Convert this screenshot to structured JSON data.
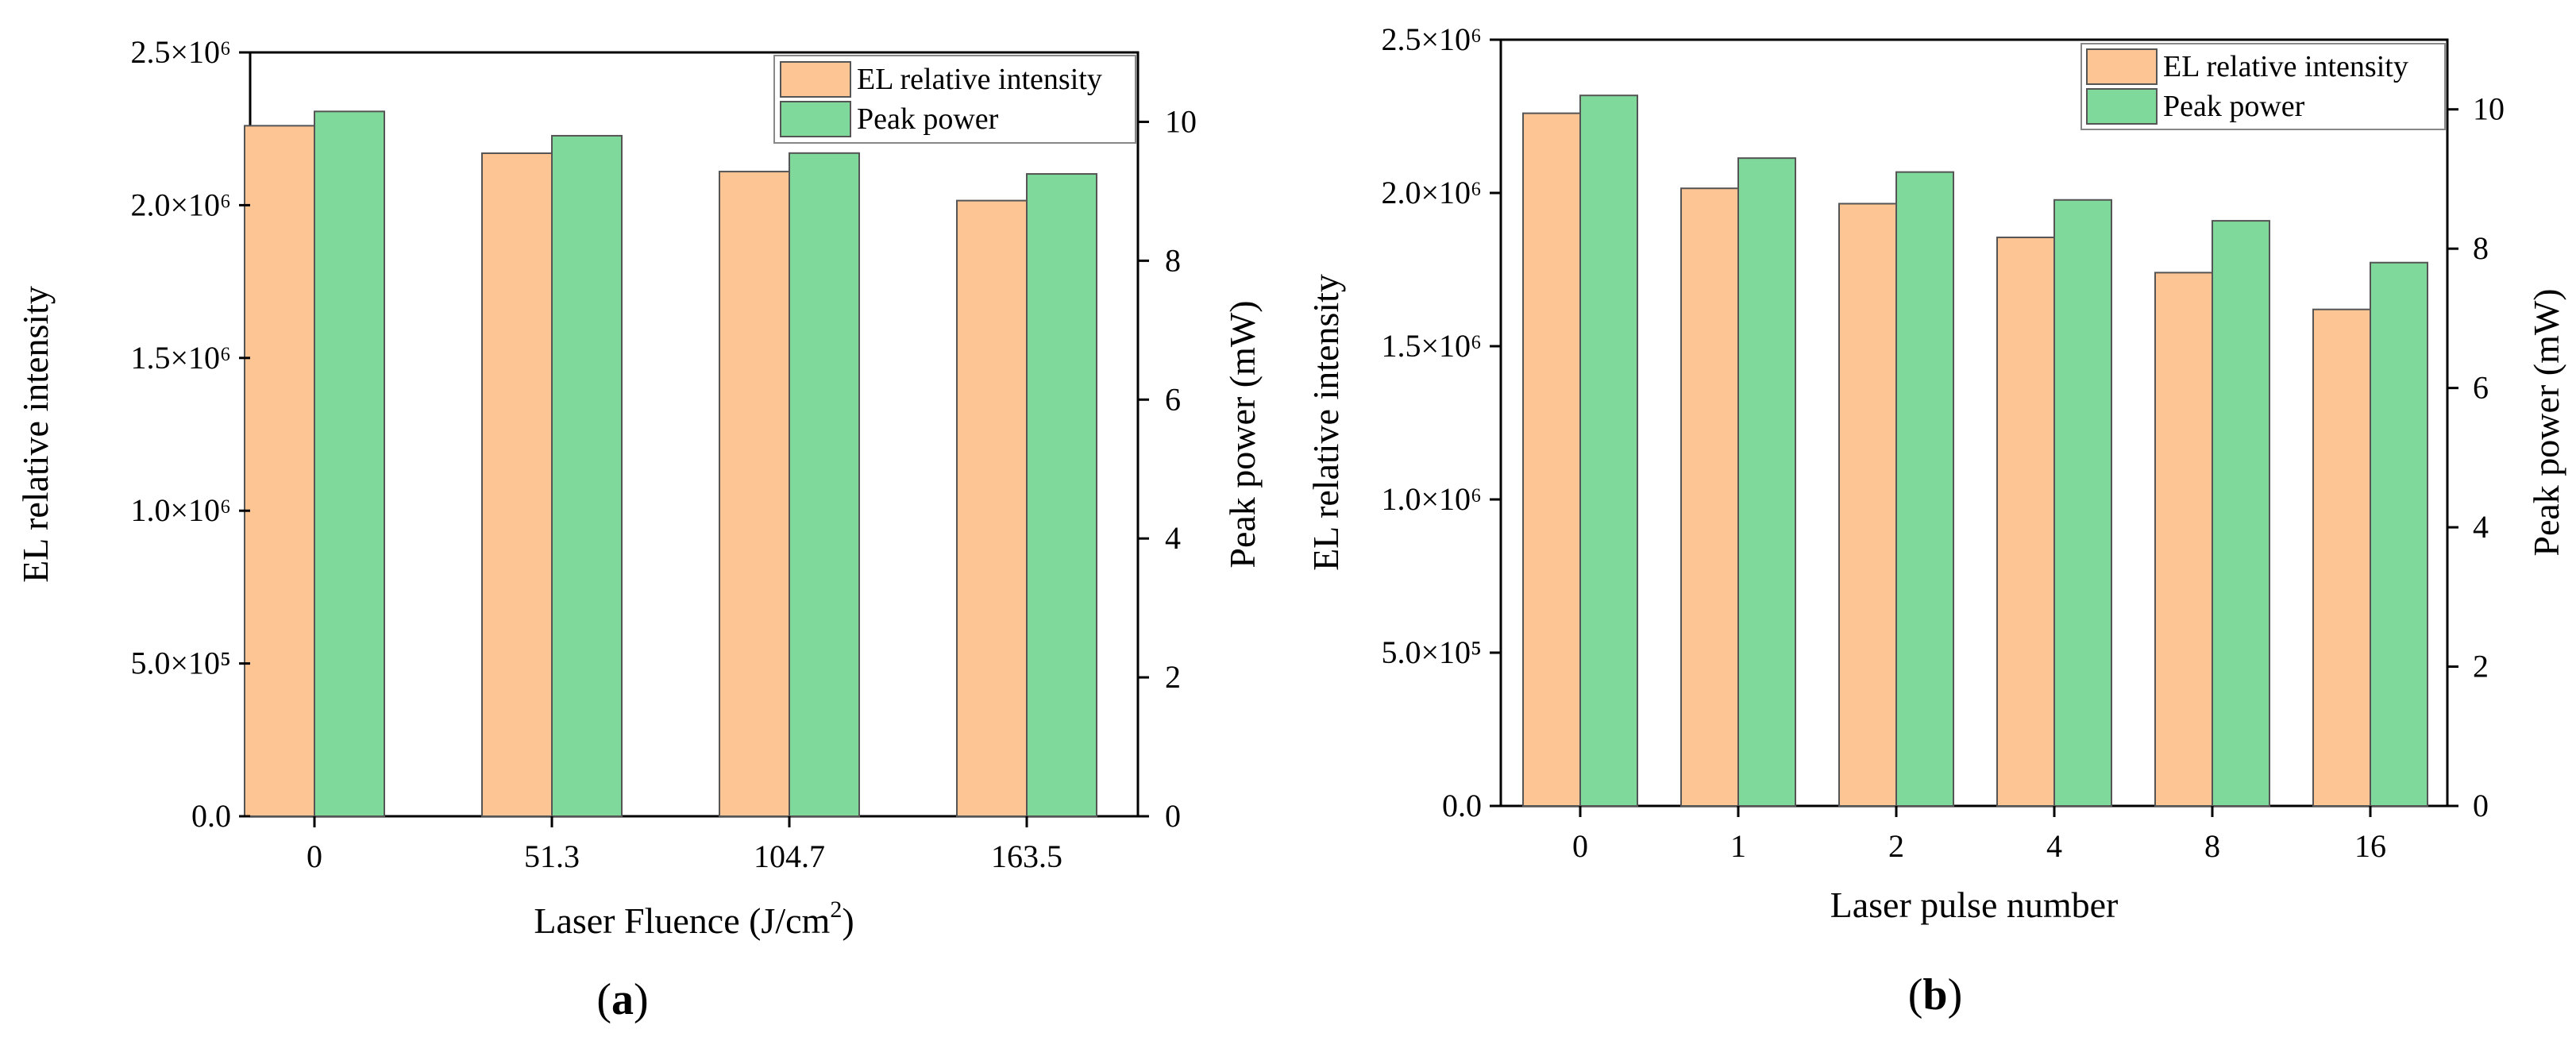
{
  "chart_data": [
    {
      "type": "bar",
      "panel_label_prefix": "(",
      "panel_label_letter": "a",
      "panel_label_suffix": ")",
      "categories": [
        "0",
        "51.3",
        "104.7",
        "163.5"
      ],
      "xlabel_main": "Laser Fluence (J/cm",
      "xlabel_sup": "2",
      "xlabel_end": ")",
      "ylabel": "EL relative intensity",
      "y2label": "Peak power (mW)",
      "ylim": [
        0,
        2500000
      ],
      "y2lim": [
        0,
        11.0
      ],
      "yticks": [
        "0.0",
        "5.0×10⁵",
        "1.0×10⁶",
        "1.5×10⁶",
        "2.0×10⁶",
        "2.5×10⁶"
      ],
      "y2ticks": [
        "0",
        "2",
        "4",
        "6",
        "8",
        "10"
      ],
      "y2tick_values": [
        0,
        2,
        4,
        6,
        8,
        10
      ],
      "legend": "top-right",
      "series": [
        {
          "name": "EL relative intensity",
          "axis": "left",
          "color": "#fdc594",
          "values": [
            2260000,
            2170000,
            2110000,
            2015000
          ]
        },
        {
          "name": "Peak power",
          "axis": "right",
          "color": "#7fd99a",
          "values": [
            10.15,
            9.8,
            9.55,
            9.25
          ]
        }
      ]
    },
    {
      "type": "bar",
      "panel_label_prefix": "(",
      "panel_label_letter": "b",
      "panel_label_suffix": ")",
      "categories": [
        "0",
        "1",
        "2",
        "4",
        "8",
        "16"
      ],
      "xlabel": "Laser pulse number",
      "ylabel": "EL relative intensity",
      "y2label": "Peak power (mW)",
      "ylim": [
        0,
        2500000
      ],
      "y2lim": [
        0,
        11.0
      ],
      "yticks": [
        "0.0",
        "5.0×10⁵",
        "1.0×10⁶",
        "1.5×10⁶",
        "2.0×10⁶",
        "2.5×10⁶"
      ],
      "y2ticks": [
        "0",
        "2",
        "4",
        "6",
        "8",
        "10"
      ],
      "y2tick_values": [
        0,
        2,
        4,
        6,
        8,
        10
      ],
      "legend": "top-right",
      "series": [
        {
          "name": "EL relative intensity",
          "axis": "left",
          "color": "#fdc594",
          "values": [
            2260000,
            2015000,
            1965000,
            1855000,
            1740000,
            1620000
          ]
        },
        {
          "name": "Peak power",
          "axis": "right",
          "color": "#7fd99a",
          "values": [
            10.2,
            9.3,
            9.1,
            8.7,
            8.4,
            7.8
          ]
        }
      ]
    }
  ]
}
